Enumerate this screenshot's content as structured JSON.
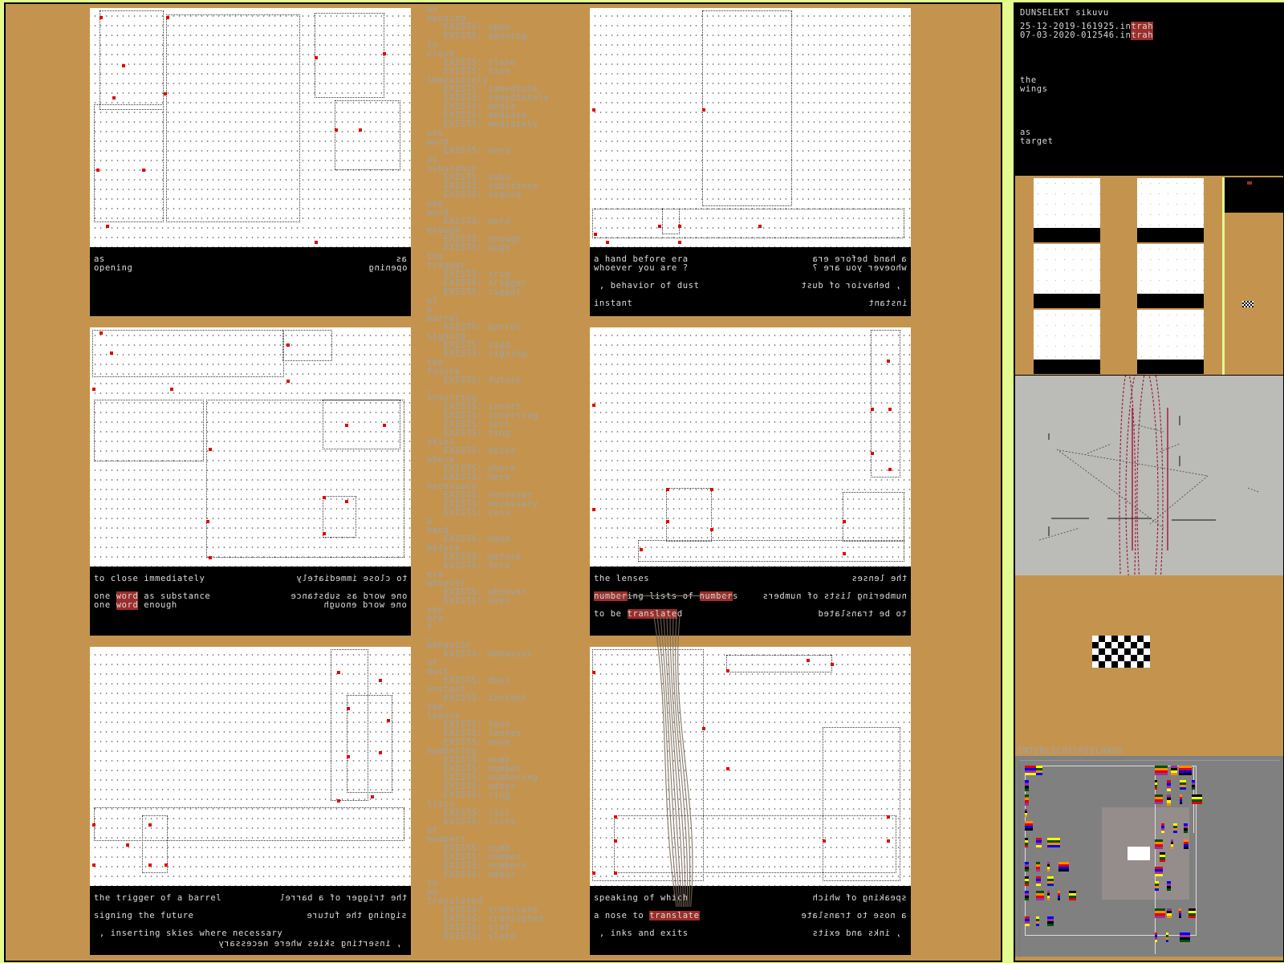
{
  "colors": {
    "background": "#e3fb8f",
    "panel": "#c4944f",
    "highlight": "#9b2d2a",
    "wordlist_text": "#9aa3ad",
    "marker": "#e10000"
  },
  "panels": [
    {
      "lines": [
        [
          {
            "t": "as"
          }
        ],
        [
          {
            "t": "opening"
          }
        ]
      ]
    },
    {
      "lines": [
        [
          {
            "t": "a hand before era"
          }
        ],
        [
          {
            "t": "whoever you are ?"
          }
        ],
        [],
        [
          {
            "t": " , behavior of dust"
          }
        ],
        [],
        [
          {
            "t": "instant"
          }
        ]
      ]
    },
    {
      "lines": [
        [
          {
            "t": "to close immediately"
          }
        ],
        [],
        [
          {
            "t": "one "
          },
          {
            "t": "word",
            "hl": true
          },
          {
            "t": " as substance"
          }
        ],
        [
          {
            "t": "one "
          },
          {
            "t": "word",
            "hl": true
          },
          {
            "t": " enough"
          }
        ]
      ]
    },
    {
      "lines": [
        [
          {
            "t": "the lenses"
          }
        ],
        [],
        [
          {
            "t": "number",
            "hl": true,
            "strike": true
          },
          {
            "t": "ing lists of ",
            "strike": true
          },
          {
            "t": "number",
            "hl": true,
            "strike": true
          },
          {
            "t": "s"
          }
        ],
        [],
        [
          {
            "t": "to be "
          },
          {
            "t": "translate",
            "hl": true
          },
          {
            "t": "d"
          }
        ]
      ]
    },
    {
      "lines": [
        [
          {
            "t": "the trigger of a barrel"
          }
        ],
        [],
        [
          {
            "t": "signing the future"
          }
        ],
        [],
        [
          {
            "t": " , inserting skies where necessary"
          }
        ]
      ]
    },
    {
      "lines": [
        [
          {
            "t": "speaking of which"
          }
        ],
        [],
        [
          {
            "t": "a nose to "
          },
          {
            "t": "translate",
            "hl": true
          }
        ],
        [],
        [
          {
            "t": " , inks and exits"
          }
        ]
      ]
    }
  ],
  "wordlist": {
    "exists_label": "EXISTS: ",
    "entries": [
      {
        "w": "as"
      },
      {
        "w": "opening",
        "ex": [
          "open",
          "opening"
        ]
      },
      {
        "w": "to"
      },
      {
        "w": "close",
        "ex": [
          "close",
          "lose"
        ]
      },
      {
        "w": "immediately",
        "ex": [
          "immediate",
          "immediately",
          "media",
          "mediate",
          "mediately"
        ]
      },
      {
        "w": "one"
      },
      {
        "w": "word",
        "ex": [
          "word"
        ]
      },
      {
        "w": "as"
      },
      {
        "w": "substance",
        "ex": [
          "subs",
          "substance",
          "stance"
        ]
      },
      {
        "w": "one"
      },
      {
        "w": "word",
        "ex": [
          "word"
        ]
      },
      {
        "w": "enough",
        "ex": [
          "enough",
          "ough"
        ]
      },
      {
        "w": "the"
      },
      {
        "w": "trigger",
        "ex": [
          "trig",
          "trigger",
          "rigger"
        ]
      },
      {
        "w": "of"
      },
      {
        "w": "a"
      },
      {
        "w": "barrel",
        "ex": [
          "barrel"
        ]
      },
      {
        "w": "signing",
        "ex": [
          "sign",
          "signing"
        ]
      },
      {
        "w": "the"
      },
      {
        "w": "future",
        "ex": [
          "future"
        ]
      },
      {
        "w": ","
      },
      {
        "w": "inserting",
        "ex": [
          "insert",
          "inserting",
          "sert",
          "ting"
        ]
      },
      {
        "w": "skies",
        "ex": [
          "skies"
        ]
      },
      {
        "w": "where",
        "ex": [
          "where",
          "here"
        ]
      },
      {
        "w": "necessary",
        "ex": [
          "necessar",
          "necessary",
          "cess"
        ]
      },
      {
        "w": "a"
      },
      {
        "w": "hand",
        "ex": [
          "hand"
        ]
      },
      {
        "w": "before",
        "ex": [
          "before",
          "fore"
        ]
      },
      {
        "w": "era"
      },
      {
        "w": "whoever",
        "ex": [
          "whoever",
          "ever"
        ]
      },
      {
        "w": "you"
      },
      {
        "w": "are"
      },
      {
        "w": "?"
      },
      {
        "w": ","
      },
      {
        "w": "behavior",
        "ex": [
          "behavior"
        ]
      },
      {
        "w": "of"
      },
      {
        "w": "dust",
        "ex": [
          "dust"
        ]
      },
      {
        "w": "instant",
        "ex": [
          "instant"
        ]
      },
      {
        "w": "the"
      },
      {
        "w": "lenses",
        "ex": [
          "lens",
          "lenses",
          "ense"
        ]
      },
      {
        "w": "numbering",
        "ex": [
          "numb",
          "number",
          "numbering",
          "umber",
          "ring"
        ]
      },
      {
        "w": "lists",
        "ex": [
          "list",
          "lists"
        ]
      },
      {
        "w": "of"
      },
      {
        "w": "numbers",
        "ex": [
          "numb",
          "number",
          "numbers",
          "umber"
        ]
      },
      {
        "w": "to"
      },
      {
        "w": "be"
      },
      {
        "w": "translated",
        "ex": [
          "translate",
          "translated",
          "slat",
          "slate"
        ]
      }
    ]
  },
  "sidebar": {
    "title": "DUNSELEKT sikuvu",
    "files": [
      {
        "name": "25-12-2019-161925.in",
        "tag": "trah"
      },
      {
        "name": "07-03-2020-012546.in",
        "tag": "trah"
      }
    ],
    "words1": [
      "the",
      "wings"
    ],
    "words2": [
      "as",
      "target"
    ],
    "section_label": "INTERLICHTSPIELHAUS"
  }
}
